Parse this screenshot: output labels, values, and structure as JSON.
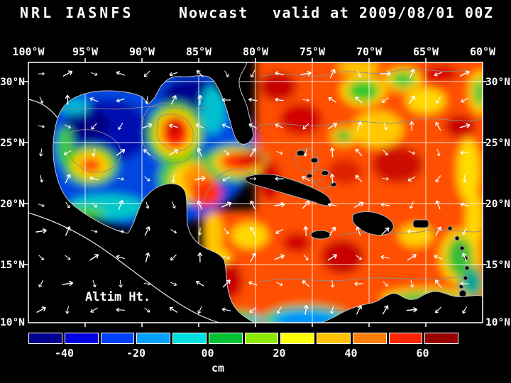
{
  "title": {
    "model": "NRL IASNFS",
    "product": "Nowcast",
    "valid": "valid at 2009/08/01 00Z"
  },
  "map": {
    "lon_ticks": [
      "100°W",
      "95°W",
      "90°W",
      "85°W",
      "80°W",
      "75°W",
      "70°W",
      "65°W",
      "60°W"
    ],
    "lat_ticks": [
      "30°N",
      "25°N",
      "20°N",
      "15°N",
      "10°N"
    ],
    "field_label": "Altim Ht."
  },
  "colorbar": {
    "unit": "cm",
    "ticks": [
      "-40",
      "-20",
      "00",
      "20",
      "40",
      "60"
    ],
    "segments": [
      "#000090",
      "#0000e0",
      "#0040ff",
      "#00a0ff",
      "#00dfe0",
      "#00c235",
      "#8fe800",
      "#ffff00",
      "#ffc200",
      "#ff7d00",
      "#ff2400",
      "#980000"
    ]
  },
  "style": {
    "frame_color": "#ffffff",
    "land_color": "#000000",
    "coastline_color": "#c4c4c4",
    "contour_color": "#8c8c8c",
    "vector_color": "#ffffff"
  }
}
